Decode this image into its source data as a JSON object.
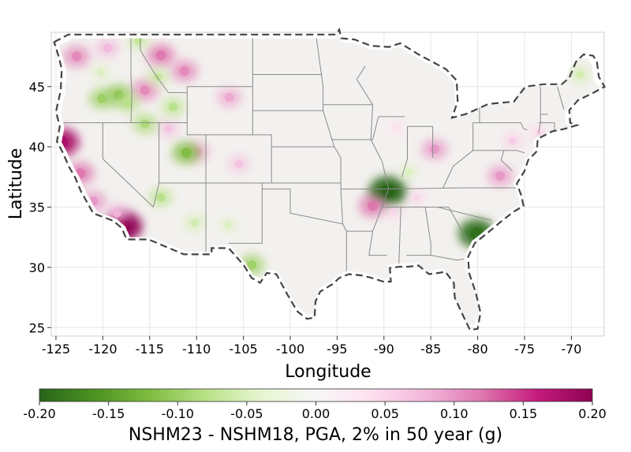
{
  "chart_data": {
    "type": "heatmap",
    "title": "",
    "xlabel": "Longitude",
    "ylabel": "Latitude",
    "xlim": [
      -125.5,
      -66.5
    ],
    "ylim": [
      24.3,
      49.5
    ],
    "x_ticks": [
      -125,
      -120,
      -115,
      -110,
      -105,
      -100,
      -95,
      -90,
      -85,
      -80,
      -75,
      -70
    ],
    "y_ticks": [
      25,
      30,
      35,
      40,
      45
    ],
    "x_tick_labels": [
      "-125",
      "-120",
      "-115",
      "-110",
      "-105",
      "-100",
      "-95",
      "-90",
      "-85",
      "-80",
      "-75",
      "-70"
    ],
    "y_tick_labels": [
      "25",
      "30",
      "35",
      "40",
      "45"
    ],
    "grid": true,
    "colorbar": {
      "label": "NSHM23 - NSHM18, PGA, 2% in 50 year (g)",
      "range": [
        -0.2,
        0.2
      ],
      "ticks": [
        -0.2,
        -0.15,
        -0.1,
        -0.05,
        0.0,
        0.05,
        0.1,
        0.15,
        0.2
      ],
      "tick_labels": [
        "-0.20",
        "-0.15",
        "-0.10",
        "-0.05",
        "0.00",
        "0.05",
        "0.10",
        "0.15",
        "0.20"
      ],
      "colors": [
        "#276419",
        "#4d9221",
        "#7fbc41",
        "#b8e186",
        "#e6f5d0",
        "#f7f7f7",
        "#fde0ef",
        "#f1b6da",
        "#de77ae",
        "#c51b7d",
        "#8e0152"
      ]
    },
    "anomalies": [
      {
        "lon": -89.6,
        "lat": 36.3,
        "value": -0.2
      },
      {
        "lon": -80.1,
        "lat": 32.8,
        "value": -0.19
      },
      {
        "lon": -117.8,
        "lat": 33.4,
        "value": 0.2
      },
      {
        "lon": -124.4,
        "lat": 40.4,
        "value": 0.18
      },
      {
        "lon": -122.4,
        "lat": 37.8,
        "value": 0.12
      },
      {
        "lon": -121.0,
        "lat": 35.5,
        "value": 0.1
      },
      {
        "lon": -118.5,
        "lat": 34.5,
        "value": 0.08
      },
      {
        "lon": -106.5,
        "lat": 44.1,
        "value": 0.09
      },
      {
        "lon": -111.3,
        "lat": 46.3,
        "value": 0.11
      },
      {
        "lon": -113.8,
        "lat": 47.6,
        "value": 0.12
      },
      {
        "lon": -115.5,
        "lat": 44.7,
        "value": 0.11
      },
      {
        "lon": -122.8,
        "lat": 47.5,
        "value": 0.11
      },
      {
        "lon": -119.5,
        "lat": 48.2,
        "value": 0.08
      },
      {
        "lon": -105.5,
        "lat": 38.6,
        "value": 0.07
      },
      {
        "lon": -109.9,
        "lat": 39.6,
        "value": 0.09
      },
      {
        "lon": -113.0,
        "lat": 41.5,
        "value": 0.07
      },
      {
        "lon": -84.6,
        "lat": 39.8,
        "value": 0.1
      },
      {
        "lon": -77.6,
        "lat": 37.6,
        "value": 0.1
      },
      {
        "lon": -76.3,
        "lat": 40.5,
        "value": 0.06
      },
      {
        "lon": -73.5,
        "lat": 41.2,
        "value": 0.05
      },
      {
        "lon": -91.2,
        "lat": 35.1,
        "value": 0.12
      },
      {
        "lon": -89.0,
        "lat": 34.6,
        "value": 0.05
      },
      {
        "lon": -86.5,
        "lat": 35.8,
        "value": 0.05
      },
      {
        "lon": -88.6,
        "lat": 41.6,
        "value": 0.04
      },
      {
        "lon": -87.4,
        "lat": 37.9,
        "value": -0.05
      },
      {
        "lon": -120.1,
        "lat": 44.0,
        "value": -0.1
      },
      {
        "lon": -118.3,
        "lat": 44.3,
        "value": -0.11
      },
      {
        "lon": -117.3,
        "lat": 43.6,
        "value": -0.08
      },
      {
        "lon": -115.5,
        "lat": 41.9,
        "value": -0.09
      },
      {
        "lon": -112.5,
        "lat": 43.3,
        "value": -0.08
      },
      {
        "lon": -111.1,
        "lat": 39.5,
        "value": -0.12
      },
      {
        "lon": -113.8,
        "lat": 35.8,
        "value": -0.08
      },
      {
        "lon": -110.2,
        "lat": 33.7,
        "value": -0.06
      },
      {
        "lon": -116.2,
        "lat": 48.8,
        "value": -0.07
      },
      {
        "lon": -114.1,
        "lat": 45.8,
        "value": -0.07
      },
      {
        "lon": -104.1,
        "lat": 30.2,
        "value": -0.1
      },
      {
        "lon": -106.6,
        "lat": 33.5,
        "value": -0.05
      },
      {
        "lon": -69.1,
        "lat": 46.0,
        "value": -0.06
      },
      {
        "lon": -120.2,
        "lat": 46.2,
        "value": -0.05
      }
    ]
  }
}
